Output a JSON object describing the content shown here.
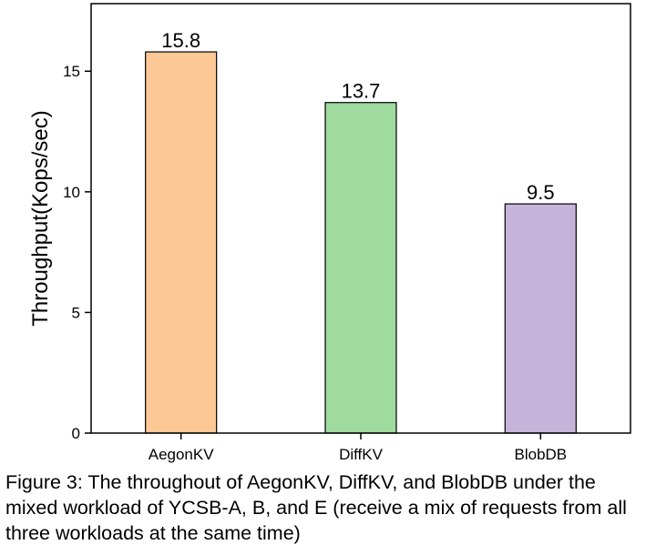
{
  "chart_data": {
    "type": "bar",
    "categories": [
      "AegonKV",
      "DiffKV",
      "BlobDB"
    ],
    "values": [
      15.8,
      13.7,
      9.5
    ],
    "data_labels": [
      "15.8",
      "13.7",
      "9.5"
    ],
    "ylabel": "Throughput(Kops/sec)",
    "xlabel": "",
    "ylim": [
      0,
      17.8
    ],
    "yticks": [
      0,
      5,
      10,
      15
    ],
    "bar_colors": [
      "#FBC896",
      "#9FDA9F",
      "#C5B3D9"
    ],
    "bar_stroke": "#000000",
    "grid": false,
    "legend": "none"
  },
  "caption": "Figure 3: The throughout of AegonKV, DiffKV, and BlobDB under the mixed workload of YCSB-A, B, and E (receive a mix of requests from all three workloads at the same time)"
}
